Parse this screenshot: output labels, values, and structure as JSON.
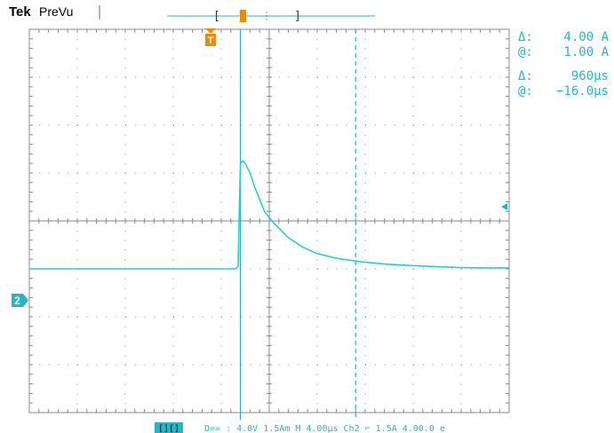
{
  "header": {
    "brand": "Tek",
    "acquisition_status": "PreVu"
  },
  "cursor_readout": {
    "amplitude_delta_label": "Δ:",
    "amplitude_delta_value": "4.00 A",
    "amplitude_at_label": "@:",
    "amplitude_at_value": "1.00 A",
    "time_delta_label": "Δ:",
    "time_delta_value": "960µs",
    "time_at_label": "@:",
    "time_at_value": "−16.0µs"
  },
  "trigger": {
    "marker_label": "T"
  },
  "channel": {
    "label": "2"
  },
  "status_bar": {
    "run_label": "[][]",
    "text": "D==  : 4.0V  1.5Am  M 4.00µs  Ch2 ⌐  1.5A  4.00.0 e"
  },
  "colors": {
    "trace": "#20d0d8",
    "cursor": "#20b8c8",
    "trigger_marker": "#f08a00",
    "graticule": "#888888",
    "readout_text": "#20b8c8"
  },
  "chart_data": {
    "type": "line",
    "title": "",
    "xlabel": "",
    "ylabel": "",
    "grid": true,
    "x_divisions": 10,
    "y_divisions": 8,
    "xlim": [
      -4.4,
      5.6
    ],
    "ylim": [
      -5,
      3
    ],
    "units": "divisions",
    "series": [
      {
        "name": "",
        "x": [
          -4.4,
          -0.1,
          -0.05,
          0,
          0.05,
          0.1,
          0.2,
          0.3,
          0.5,
          0.7,
          1.0,
          1.3,
          1.6,
          2.0,
          2.5,
          3.0,
          3.5,
          4.0,
          4.5,
          5.0,
          5.6
        ],
        "y": [
          -2.0,
          -2.0,
          -1.95,
          0.2,
          0.25,
          0.2,
          0.0,
          -0.3,
          -0.8,
          -1.05,
          -1.35,
          -1.55,
          -1.68,
          -1.78,
          -1.85,
          -1.9,
          -1.93,
          -1.95,
          -1.97,
          -1.98,
          -1.98
        ]
      }
    ],
    "cursors": {
      "vertical_x": [
        0.0,
        2.4
      ],
      "horizontal_y": []
    }
  }
}
